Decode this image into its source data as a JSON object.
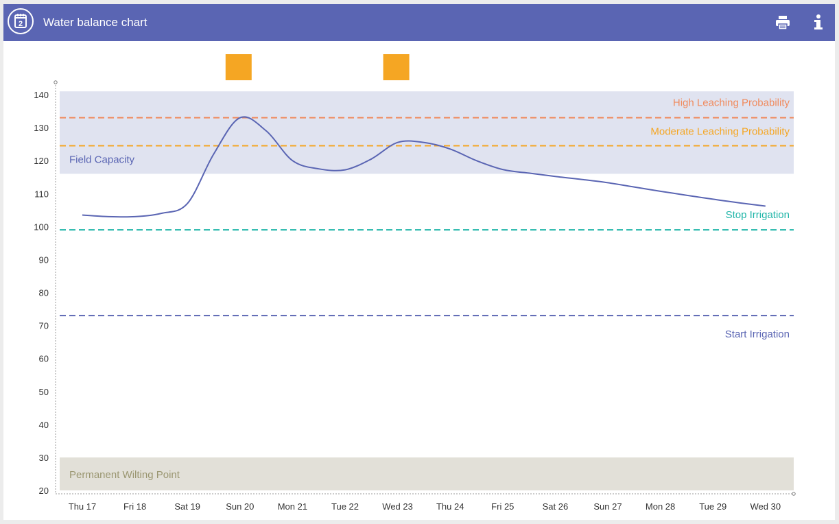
{
  "header": {
    "title": "Water balance chart",
    "calendar_icon": "calendar-icon",
    "calendar_digit": "2",
    "print_icon": "print-icon",
    "info_icon": "info-icon"
  },
  "colors": {
    "header_bg": "#5a65b3",
    "line": "#5a65b3",
    "field_capacity_band": "#e0e3f0",
    "wilting_band": "#e2e0d8",
    "high_leaching": "#f08a5d",
    "moderate_leaching": "#f5a623",
    "stop_irrigation": "#1fb5a8",
    "start_irrigation": "#5a65b3",
    "irrigation_event": "#f5a623",
    "wilting_text": "#9a9670"
  },
  "chart_data": {
    "type": "line",
    "categories": [
      "Thu 17",
      "Fri 18",
      "Sat 19",
      "Sun 20",
      "Mon 21",
      "Tue 22",
      "Wed 23",
      "Thu 24",
      "Fri 25",
      "Sat 26",
      "Sun 27",
      "Mon 28",
      "Tue 29",
      "Wed 30"
    ],
    "x": [
      0,
      0.5,
      1,
      1.5,
      2,
      2.5,
      3,
      3.5,
      4,
      4.5,
      5,
      5.5,
      6,
      6.5,
      7,
      7.5,
      8,
      8.5,
      9,
      9.5,
      10,
      10.5,
      11,
      11.5,
      12,
      12.5,
      13
    ],
    "series": [
      {
        "values": [
          103.5,
          103.0,
          103.0,
          104.0,
          107,
          122,
          133,
          129,
          120,
          117.5,
          117.2,
          120.5,
          125.5,
          125.5,
          123.5,
          120,
          117.3,
          116.2,
          115.2,
          114.3,
          113.3,
          112,
          110.7,
          109.5,
          108.3,
          107.2,
          106.2
        ]
      }
    ],
    "ylim": [
      20,
      140
    ],
    "yticks": [
      20,
      30,
      40,
      50,
      60,
      70,
      80,
      90,
      100,
      110,
      120,
      130,
      140
    ],
    "grid": false,
    "bands": [
      {
        "label": "Field Capacity",
        "from": 116,
        "to": 141
      },
      {
        "label": "Permanent Wilting Point",
        "from": 20,
        "to": 30
      }
    ],
    "thresholds": [
      {
        "label": "High Leaching Probability",
        "value": 133
      },
      {
        "label": "Moderate Leaching Probability",
        "value": 124.5
      },
      {
        "label": "Stop Irrigation",
        "value": 99
      },
      {
        "label": "Start Irrigation",
        "value": 73
      }
    ],
    "irrigation_events": [
      "Sun 20",
      "Wed 23"
    ]
  }
}
